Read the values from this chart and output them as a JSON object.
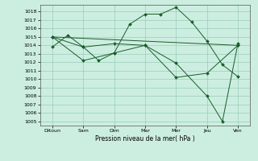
{
  "background_color": "#cceee0",
  "grid_color": "#99ccb8",
  "line_color": "#1a5c2a",
  "marker_color": "#1a5c2a",
  "xlabel": "Pression niveau de la mer( hPa )",
  "ylim": [
    1004.5,
    1018.8
  ],
  "yticks": [
    1005,
    1006,
    1007,
    1008,
    1009,
    1010,
    1011,
    1012,
    1013,
    1014,
    1015,
    1016,
    1017,
    1018
  ],
  "xtick_labels": [
    "Ditoun",
    "Sam",
    "Dim",
    "Mar",
    "Mer",
    "Jeu",
    "Ven"
  ],
  "xtick_positions": [
    0,
    1,
    2,
    3,
    4,
    5,
    6
  ],
  "series": [
    {
      "x": [
        0,
        0.5,
        1,
        1.5,
        2,
        2.5,
        3,
        3.5,
        4,
        4.5,
        5,
        5.5,
        6
      ],
      "y": [
        1013.8,
        1015.2,
        1013.8,
        1012.2,
        1013.1,
        1016.5,
        1017.7,
        1017.7,
        1018.5,
        1016.8,
        1014.5,
        1011.7,
        1010.3
      ]
    },
    {
      "x": [
        0,
        1,
        2,
        3,
        4,
        5,
        6
      ],
      "y": [
        1015.0,
        1012.2,
        1013.1,
        1014.0,
        1010.2,
        1010.7,
        1014.0
      ]
    },
    {
      "x": [
        0,
        1,
        2,
        3,
        4,
        5,
        5.5,
        6
      ],
      "y": [
        1015.0,
        1013.8,
        1014.2,
        1014.0,
        1011.9,
        1008.0,
        1005.0,
        1014.2
      ]
    },
    {
      "x": [
        0,
        6
      ],
      "y": [
        1015.0,
        1014.0
      ]
    }
  ]
}
